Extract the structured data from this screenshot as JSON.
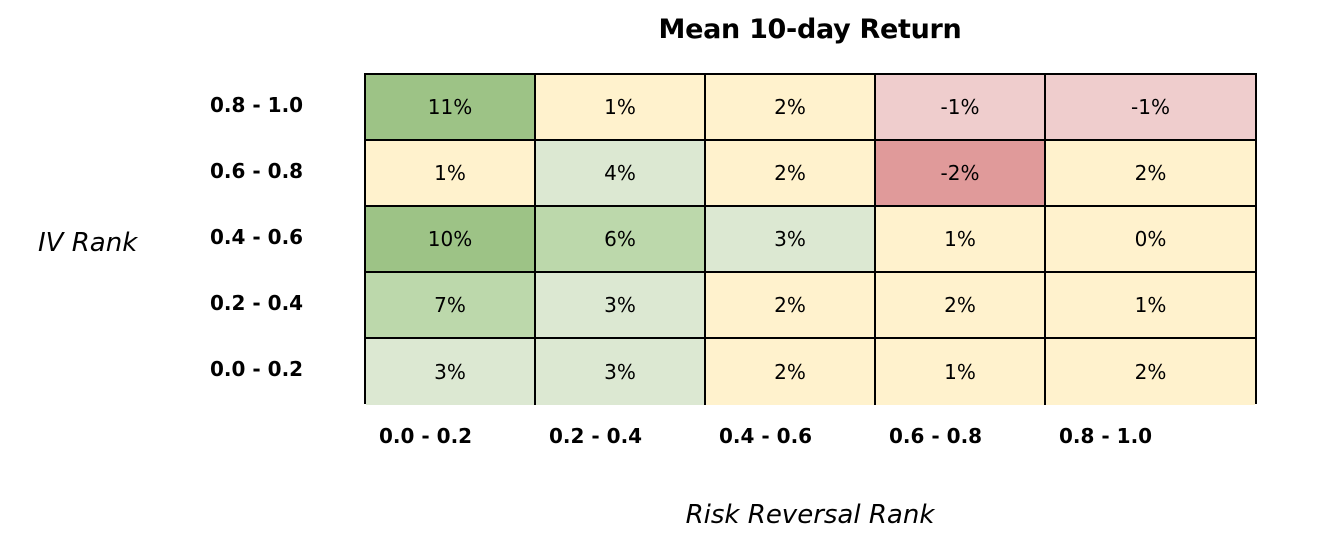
{
  "chart_data": {
    "type": "heatmap",
    "title": "Mean 10-day Return",
    "xlabel": "Risk Reversal Rank",
    "ylabel": "IV Rank",
    "x_categories": [
      "0.0 - 0.2",
      "0.2 - 0.4",
      "0.4 - 0.6",
      "0.6 - 0.8",
      "0.8 - 1.0"
    ],
    "y_categories": [
      "0.8 - 1.0",
      "0.6 - 0.8",
      "0.4 - 0.6",
      "0.2 - 0.4",
      "0.0 - 0.2"
    ],
    "values": [
      [
        11,
        1,
        2,
        -1,
        -1
      ],
      [
        1,
        4,
        2,
        -2,
        2
      ],
      [
        10,
        6,
        3,
        1,
        0
      ],
      [
        7,
        3,
        2,
        2,
        1
      ],
      [
        3,
        3,
        2,
        1,
        2
      ]
    ],
    "cell_labels": [
      [
        "11%",
        "1%",
        "2%",
        "-1%",
        "-1%"
      ],
      [
        "1%",
        "4%",
        "2%",
        "-2%",
        "2%"
      ],
      [
        "10%",
        "6%",
        "3%",
        "1%",
        "0%"
      ],
      [
        "7%",
        "3%",
        "2%",
        "2%",
        "1%"
      ],
      [
        "3%",
        "3%",
        "2%",
        "1%",
        "2%"
      ]
    ],
    "colors": {
      "green_strong": "#9dc386",
      "green_medium": "#bcd8ab",
      "green_light": "#dce8d2",
      "neutral": "#fff2cd",
      "red_light": "#efcdcd",
      "red_strong": "#e09a9a"
    },
    "grid": true,
    "legend": "none"
  }
}
